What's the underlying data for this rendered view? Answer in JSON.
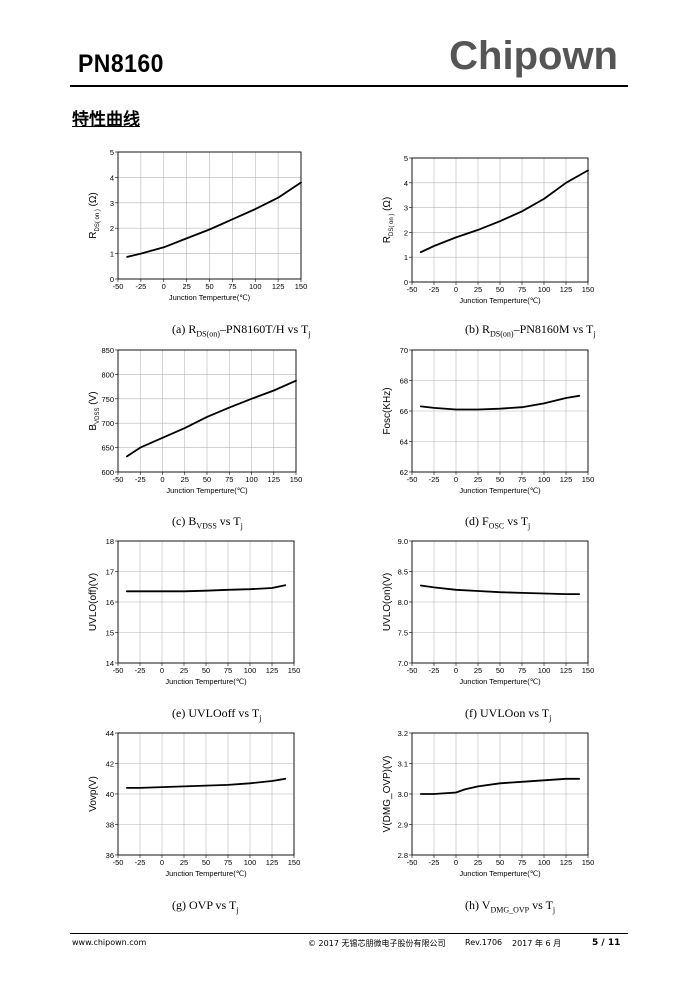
{
  "header": {
    "part_number": "PN8160",
    "brand": "Chipown"
  },
  "section_title": "特性曲线",
  "charts": [
    {
      "id": "a",
      "ylabel": "R",
      "ylabel_sub": "DS( on )",
      "ylabel_suffix": " (Ω)",
      "xlabel": "Junction Temperture(℃)",
      "xticks": [
        "-50",
        "-25",
        "0",
        "25",
        "50",
        "75",
        "100",
        "125",
        "150"
      ],
      "yticks": [
        "0",
        "1",
        "2",
        "3",
        "4",
        "5"
      ],
      "caption": {
        "pre": "(a) R",
        "sub": "DS(on)",
        "mid": "–PN8160T/H vs T",
        "sub2": "j"
      }
    },
    {
      "id": "b",
      "ylabel": "R",
      "ylabel_sub": "DS( on )",
      "ylabel_suffix": " (Ω)",
      "xlabel": "Junction Temperture(℃)",
      "xticks": [
        "-50",
        "-25",
        "0",
        "25",
        "50",
        "75",
        "100",
        "125",
        "150"
      ],
      "yticks": [
        "0",
        "1",
        "2",
        "3",
        "4",
        "5"
      ],
      "caption": {
        "pre": "(b) R",
        "sub": "DS(on)",
        "mid": "–PN8160M vs T",
        "sub2": "j"
      }
    },
    {
      "id": "c",
      "ylabel": "B",
      "ylabel_sub": "VDSS",
      "ylabel_suffix": " (V)",
      "xlabel": "Junction Temperture(℃)",
      "xticks": [
        "-50",
        "-25",
        "0",
        "25",
        "50",
        "75",
        "100",
        "125",
        "150"
      ],
      "yticks": [
        "600",
        "650",
        "700",
        "750",
        "800",
        "850"
      ],
      "caption": {
        "pre": "(c) B",
        "sub": "VDSS",
        "mid": " vs T",
        "sub2": "j"
      }
    },
    {
      "id": "d",
      "ylabel": "Fosc(KHz)",
      "ylabel_sub": "",
      "ylabel_suffix": "",
      "xlabel": "Junction Temperture(℃)",
      "xticks": [
        "-50",
        "-25",
        "0",
        "25",
        "50",
        "75",
        "100",
        "125",
        "150"
      ],
      "yticks": [
        "62",
        "64",
        "66",
        "68",
        "70"
      ],
      "caption": {
        "pre": "(d) F",
        "sub": "OSC",
        "mid": " vs T",
        "sub2": "j"
      }
    },
    {
      "id": "e",
      "ylabel": "UVLO(off)(V)",
      "ylabel_sub": "",
      "ylabel_suffix": "",
      "xlabel": "Junction Temperture(℃)",
      "xticks": [
        "-50",
        "-25",
        "0",
        "25",
        "50",
        "75",
        "100",
        "125",
        "150"
      ],
      "yticks": [
        "14",
        "15",
        "16",
        "17",
        "18"
      ],
      "caption": {
        "pre": "(e) UVLOoff vs T",
        "sub": "j",
        "mid": "",
        "sub2": ""
      }
    },
    {
      "id": "f",
      "ylabel": "UVLO(on)(V)",
      "ylabel_sub": "",
      "ylabel_suffix": "",
      "xlabel": "Junction Temperture(℃)",
      "xticks": [
        "-50",
        "-25",
        "0",
        "25",
        "50",
        "75",
        "100",
        "125",
        "150"
      ],
      "yticks": [
        "7.0",
        "7.5",
        "8.0",
        "8.5",
        "9.0"
      ],
      "caption": {
        "pre": "(f) UVLOon vs T",
        "sub": "j",
        "mid": "",
        "sub2": ""
      }
    },
    {
      "id": "g",
      "ylabel": "Vovp(V)",
      "ylabel_sub": "",
      "ylabel_suffix": "",
      "xlabel": "Junction Temperture(℃)",
      "xticks": [
        "-50",
        "-25",
        "0",
        "25",
        "50",
        "75",
        "100",
        "125",
        "150"
      ],
      "yticks": [
        "36",
        "38",
        "40",
        "42",
        "44"
      ],
      "caption": {
        "pre": "(g) OVP vs T",
        "sub": "j",
        "mid": "",
        "sub2": ""
      }
    },
    {
      "id": "h",
      "ylabel": "V(DMG_OVP)(V)",
      "ylabel_sub": "",
      "ylabel_suffix": "",
      "xlabel": "Junction Temperture(℃)",
      "xticks": [
        "-50",
        "-25",
        "0",
        "25",
        "50",
        "75",
        "100",
        "125",
        "150"
      ],
      "yticks": [
        "2.8",
        "2.9",
        "3.0",
        "3.1",
        "3.2"
      ],
      "caption": {
        "pre": "(h) V",
        "sub": "DMG_OVP",
        "mid": " vs T",
        "sub2": "j"
      }
    }
  ],
  "chart_data": [
    {
      "type": "line",
      "xlim": [
        -50,
        150
      ],
      "ylim": [
        0,
        5
      ],
      "grid": true,
      "x": [
        -40,
        -25,
        0,
        25,
        50,
        75,
        100,
        125,
        150
      ],
      "y": [
        0.87,
        1.0,
        1.25,
        1.6,
        1.95,
        2.35,
        2.75,
        3.2,
        3.8
      ]
    },
    {
      "type": "line",
      "xlim": [
        -50,
        150
      ],
      "ylim": [
        0,
        5
      ],
      "grid": true,
      "x": [
        -40,
        -25,
        0,
        25,
        50,
        75,
        100,
        125,
        150
      ],
      "y": [
        1.2,
        1.45,
        1.8,
        2.1,
        2.45,
        2.85,
        3.35,
        4.0,
        4.5
      ]
    },
    {
      "type": "line",
      "xlim": [
        -50,
        150
      ],
      "ylim": [
        600,
        850
      ],
      "grid": true,
      "x": [
        -40,
        -25,
        0,
        25,
        50,
        75,
        100,
        125,
        150
      ],
      "y": [
        632,
        650,
        670,
        690,
        713,
        732,
        750,
        767,
        787
      ]
    },
    {
      "type": "line",
      "xlim": [
        -50,
        150
      ],
      "ylim": [
        62,
        70
      ],
      "grid": true,
      "x": [
        -40,
        -25,
        0,
        25,
        50,
        75,
        100,
        125,
        140
      ],
      "y": [
        66.3,
        66.2,
        66.1,
        66.1,
        66.15,
        66.25,
        66.5,
        66.85,
        67.0
      ]
    },
    {
      "type": "line",
      "xlim": [
        -50,
        150
      ],
      "ylim": [
        14,
        18
      ],
      "grid": true,
      "x": [
        -40,
        -25,
        0,
        25,
        50,
        75,
        100,
        125,
        140
      ],
      "y": [
        16.35,
        16.35,
        16.35,
        16.35,
        16.37,
        16.4,
        16.42,
        16.46,
        16.55
      ]
    },
    {
      "type": "line",
      "xlim": [
        -50,
        150
      ],
      "ylim": [
        7.0,
        9.0
      ],
      "grid": true,
      "x": [
        -40,
        -25,
        0,
        25,
        50,
        75,
        100,
        125,
        140
      ],
      "y": [
        8.27,
        8.24,
        8.2,
        8.18,
        8.16,
        8.15,
        8.14,
        8.13,
        8.13
      ]
    },
    {
      "type": "line",
      "xlim": [
        -50,
        150
      ],
      "ylim": [
        36,
        44
      ],
      "grid": true,
      "x": [
        -40,
        -25,
        0,
        25,
        50,
        75,
        100,
        125,
        140
      ],
      "y": [
        40.4,
        40.4,
        40.45,
        40.5,
        40.55,
        40.6,
        40.7,
        40.85,
        41.0
      ]
    },
    {
      "type": "line",
      "xlim": [
        -50,
        150
      ],
      "ylim": [
        2.8,
        3.2
      ],
      "grid": true,
      "x": [
        -40,
        -25,
        0,
        10,
        25,
        50,
        75,
        100,
        125,
        140
      ],
      "y": [
        3.0,
        3.0,
        3.005,
        3.015,
        3.025,
        3.035,
        3.04,
        3.045,
        3.05,
        3.05
      ]
    }
  ],
  "footer": {
    "website": "www.chipown.com",
    "copyright": "© 2017 无锡芯朋微电子股份有限公司",
    "revision": "Rev.1706",
    "date": "2017 年 6 月",
    "page": "5 / 11"
  }
}
